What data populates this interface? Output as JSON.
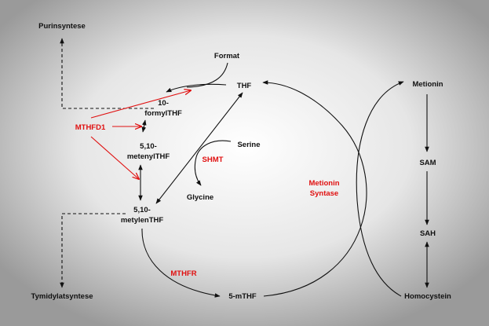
{
  "nodes": {
    "purinsyntese": "Purinsyntese",
    "format": "Format",
    "thf": "THF",
    "formylthf_line1": "10-",
    "formylthf_line2": "formylTHF",
    "mthfd1": "MTHFD1",
    "metenylthf_line1": "5,10-",
    "metenylthf_line2": "metenylTHF",
    "serine": "Serine",
    "shmt": "SHMT",
    "glycine": "Glycine",
    "metylenthf_line1": "5,10-",
    "metylenthf_line2": "metylenTHF",
    "mthfr": "MTHFR",
    "mthf": "5-mTHF",
    "tymidylatsyntese": "Tymidylatsyntese",
    "metionin_syntase_line1": "Metionin",
    "metionin_syntase_line2": "Syntase",
    "metionin": "Metionin",
    "sam": "SAM",
    "sah": "SAH",
    "homocystein": "Homocystein"
  },
  "colors": {
    "enzyme": "#e01010",
    "text": "#111111",
    "background_center": "#ffffff",
    "background_edge": "#9a9a9a"
  }
}
